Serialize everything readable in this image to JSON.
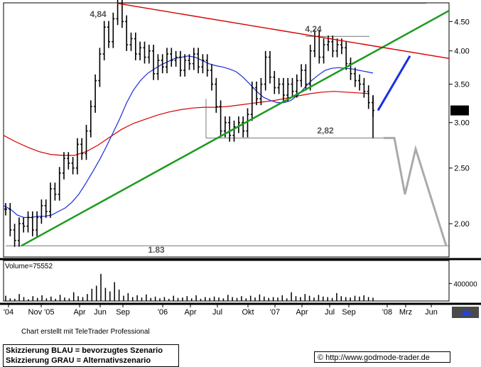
{
  "chart_data": [
    {
      "type": "candlestick-line",
      "title": "",
      "ylim": [
        1.75,
        4.85
      ],
      "yscale": "log",
      "y_ticks": [
        2.0,
        2.5,
        3.0,
        3.5,
        4.0,
        4.5
      ],
      "y_tick_labels": [
        "2.00",
        "2.50",
        "3.00",
        "3.50",
        "4.00",
        "4.50"
      ],
      "x_tick_labels": [
        "'04",
        "Nov '05",
        "Apr",
        "Jun",
        "Sep",
        "'06",
        "Apr",
        "Jul",
        "Okt",
        "'07",
        "Apr",
        "Jul",
        "Sep",
        "'08",
        "Mrz",
        "Jun"
      ],
      "last_price_label": "3.15",
      "annotations": [
        {
          "text": "4,84",
          "value": 4.84
        },
        {
          "text": "4,24",
          "value": 4.24
        },
        {
          "text": "2,82",
          "value": 2.82
        },
        {
          "text": "1.83",
          "value": 1.83
        }
      ],
      "series": [
        {
          "name": "",
          "color": "#000000",
          "values": [
            2.12,
            1.95,
            1.87,
            2.0,
            1.98,
            2.05,
            1.95,
            2.05,
            2.15,
            2.1,
            2.3,
            2.25,
            2.45,
            2.6,
            2.55,
            2.5,
            2.75,
            2.65,
            2.9,
            3.2,
            3.55,
            3.95,
            4.4,
            4.15,
            4.55,
            4.84,
            4.5,
            4.1,
            4.2,
            3.95,
            4.05,
            3.9,
            4.0,
            3.65,
            3.85,
            3.75,
            3.95,
            3.85,
            3.9,
            3.7,
            3.85,
            3.8,
            3.95,
            3.75,
            3.85,
            3.7,
            3.5,
            3.2,
            2.9,
            3.0,
            2.85,
            2.95,
            3.0,
            2.9,
            3.1,
            3.45,
            3.3,
            3.5,
            3.9,
            3.6,
            3.45,
            3.5,
            3.35,
            3.5,
            3.4,
            3.55,
            3.7,
            3.5,
            4.0,
            4.24,
            3.9,
            4.1,
            4.15,
            4.0,
            4.1,
            4.05,
            3.8,
            3.65,
            3.55,
            3.5,
            3.4,
            3.25,
            3.15
          ]
        },
        {
          "name": "",
          "color": "#1c2bdc",
          "values": [
            2.15,
            2.12,
            2.07,
            2.05,
            2.05,
            2.06,
            2.06,
            2.07,
            2.1,
            2.13,
            2.18,
            2.25,
            2.35,
            2.46,
            2.58,
            2.72,
            2.88,
            3.05,
            3.25,
            3.42,
            3.55,
            3.65,
            3.72,
            3.78,
            3.83,
            3.88,
            3.9,
            3.92,
            3.9,
            3.85,
            3.8,
            3.77,
            3.75,
            3.72,
            3.68,
            3.6,
            3.5,
            3.4,
            3.32,
            3.28,
            3.25,
            3.25,
            3.28,
            3.35,
            3.45,
            3.55,
            3.63,
            3.7,
            3.73,
            3.74,
            3.73,
            3.72,
            3.7,
            3.68,
            3.66
          ]
        },
        {
          "name": "",
          "color": "#d40000",
          "values": [
            2.85,
            2.78,
            2.72,
            2.67,
            2.64,
            2.63,
            2.63,
            2.67,
            2.74,
            2.83,
            2.92,
            2.99,
            3.04,
            3.09,
            3.13,
            3.16,
            3.18,
            3.19,
            3.19,
            3.2,
            3.22,
            3.24,
            3.26,
            3.28,
            3.31,
            3.34,
            3.37,
            3.39,
            3.4,
            3.39,
            3.38,
            3.37
          ]
        },
        {
          "name": "",
          "color": "#1d9a1d",
          "values": [
            1.83,
            4.7
          ]
        },
        {
          "name": "",
          "color": "#d40000",
          "values": [
            4.84,
            3.88
          ]
        },
        {
          "name": "",
          "color": "#1a2fe0",
          "values": [
            3.15,
            3.92
          ]
        },
        {
          "name": "",
          "color": "#aaaaaa",
          "values": [
            2.82,
            2.82,
            2.25,
            2.7,
            1.83
          ]
        }
      ]
    },
    {
      "type": "bar",
      "title": "",
      "label": "Volume=75552",
      "y_ticks": [
        400000
      ],
      "y_tick_labels": [
        "400000"
      ],
      "values": [
        120000,
        60000,
        50000,
        160000,
        90000,
        40000,
        110000,
        70000,
        130000,
        60000,
        100000,
        50000,
        140000,
        80000,
        60000,
        200000,
        110000,
        90000,
        160000,
        280000,
        350000,
        620000,
        300000,
        220000,
        430000,
        260000,
        120000,
        180000,
        90000,
        130000,
        80000,
        150000,
        70000,
        100000,
        60000,
        90000,
        50000,
        120000,
        70000,
        80000,
        110000,
        60000,
        130000,
        50000,
        90000,
        70000,
        100000,
        80000,
        60000,
        140000,
        90000,
        70000,
        110000,
        60000,
        120000,
        80000,
        150000,
        100000,
        70000,
        90000,
        80000,
        130000,
        60000,
        200000,
        110000,
        90000,
        160000,
        120000,
        80000,
        140000,
        100000,
        90000,
        70000,
        180000,
        110000,
        90000,
        80000,
        120000,
        100000,
        130000,
        90000,
        75552
      ]
    }
  ],
  "footer": {
    "credit": "Chart erstellt mit TeleTrader Professional",
    "legend_line1": "Skizzierung BLAU = bevorzugtes Szenario",
    "legend_line2": "Skizzierung GRAU = Alternativszenario",
    "url": "© http://www.godmode-trader.de"
  }
}
